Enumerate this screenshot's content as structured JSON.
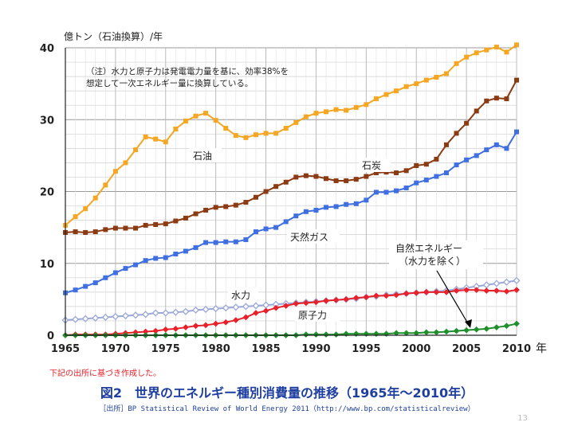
{
  "chart_data": {
    "type": "line",
    "ylabel": "億トン（石油換算）/年",
    "xunit": "年",
    "note_lines": [
      "（注）水力と原子力は発電電力量を基に、効率38%を",
      "想定して一次エネルギー量に換算している。"
    ],
    "ylim": [
      0,
      40
    ],
    "yticks": [
      0,
      10,
      20,
      30,
      40
    ],
    "xlim": [
      1965,
      2010
    ],
    "xticks": [
      1965,
      1970,
      1975,
      1980,
      1985,
      1990,
      1995,
      2000,
      2005,
      2010
    ],
    "grid": true,
    "x": [
      1965,
      1966,
      1967,
      1968,
      1969,
      1970,
      1971,
      1972,
      1973,
      1974,
      1975,
      1976,
      1977,
      1978,
      1979,
      1980,
      1981,
      1982,
      1983,
      1984,
      1985,
      1986,
      1987,
      1988,
      1989,
      1990,
      1991,
      1992,
      1993,
      1994,
      1995,
      1996,
      1997,
      1998,
      1999,
      2000,
      2001,
      2002,
      2003,
      2004,
      2005,
      2006,
      2007,
      2008,
      2009,
      2010
    ],
    "series": [
      {
        "name": "石油",
        "color": "#f5a623",
        "marker": "square",
        "values": [
          15.3,
          16.5,
          17.6,
          19.1,
          20.9,
          22.8,
          24.0,
          25.8,
          27.6,
          27.3,
          26.9,
          28.7,
          29.8,
          30.5,
          30.9,
          29.9,
          28.8,
          27.8,
          27.5,
          27.9,
          28.1,
          28.1,
          28.8,
          29.6,
          30.4,
          30.9,
          31.1,
          31.4,
          31.3,
          31.7,
          32.1,
          32.9,
          33.5,
          34.0,
          34.6,
          35.0,
          35.5,
          35.9,
          36.4,
          37.8,
          38.7,
          39.3,
          39.7,
          40.1,
          39.4,
          40.4
        ]
      },
      {
        "name": "石炭",
        "color": "#8b3a12",
        "marker": "square",
        "values": [
          14.3,
          14.4,
          14.3,
          14.4,
          14.7,
          14.9,
          14.9,
          14.9,
          15.3,
          15.4,
          15.5,
          15.9,
          16.3,
          16.9,
          17.4,
          17.8,
          17.9,
          18.1,
          18.5,
          19.2,
          20.0,
          20.7,
          21.3,
          22.0,
          22.2,
          22.1,
          21.8,
          21.5,
          21.5,
          21.7,
          22.1,
          22.6,
          22.7,
          22.6,
          22.9,
          23.6,
          23.8,
          24.5,
          26.5,
          28.1,
          29.5,
          31.2,
          32.6,
          33.0,
          32.9,
          35.5
        ]
      },
      {
        "name": "天然ガス",
        "color": "#3f6fe0",
        "marker": "square",
        "values": [
          5.9,
          6.3,
          6.8,
          7.3,
          8.0,
          8.7,
          9.3,
          9.8,
          10.4,
          10.7,
          10.8,
          11.3,
          11.7,
          12.2,
          12.9,
          12.9,
          13.0,
          13.0,
          13.3,
          14.4,
          14.8,
          15.0,
          15.8,
          16.6,
          17.2,
          17.4,
          17.8,
          17.9,
          18.2,
          18.3,
          18.8,
          19.9,
          19.9,
          20.1,
          20.5,
          21.2,
          21.6,
          22.1,
          22.6,
          23.7,
          24.4,
          25.0,
          25.8,
          26.5,
          26.0,
          28.3
        ]
      },
      {
        "name": "水力",
        "color": "#9aa7d8",
        "marker": "open-diamond",
        "values": [
          2.1,
          2.2,
          2.3,
          2.4,
          2.5,
          2.6,
          2.7,
          2.8,
          2.9,
          3.1,
          3.1,
          3.2,
          3.3,
          3.5,
          3.6,
          3.7,
          3.8,
          3.9,
          4.0,
          4.1,
          4.2,
          4.3,
          4.4,
          4.5,
          4.6,
          4.7,
          4.8,
          4.9,
          5.0,
          5.1,
          5.3,
          5.4,
          5.6,
          5.7,
          5.8,
          5.9,
          6.0,
          6.1,
          6.2,
          6.4,
          6.6,
          6.8,
          7.0,
          7.2,
          7.4,
          7.6
        ]
      },
      {
        "name": "原子力",
        "color": "#e8202a",
        "marker": "diamond",
        "values": [
          0.0,
          0.1,
          0.1,
          0.1,
          0.1,
          0.2,
          0.3,
          0.4,
          0.5,
          0.6,
          0.8,
          0.9,
          1.1,
          1.3,
          1.4,
          1.6,
          1.8,
          2.1,
          2.5,
          3.1,
          3.4,
          3.8,
          4.1,
          4.4,
          4.5,
          4.6,
          4.8,
          4.9,
          5.0,
          5.2,
          5.3,
          5.5,
          5.5,
          5.6,
          5.8,
          5.9,
          6.0,
          6.0,
          6.0,
          6.2,
          6.3,
          6.3,
          6.2,
          6.2,
          6.1,
          6.3
        ]
      },
      {
        "name": "",
        "color": "#1e8f2a",
        "marker": "diamond",
        "values": [
          0.0,
          0.0,
          0.0,
          0.0,
          0.0,
          0.0,
          0.0,
          0.0,
          0.0,
          0.0,
          0.0,
          0.0,
          0.0,
          0.0,
          0.0,
          0.0,
          0.0,
          0.0,
          0.0,
          0.0,
          0.0,
          0.0,
          0.0,
          0.0,
          0.1,
          0.1,
          0.1,
          0.1,
          0.2,
          0.2,
          0.2,
          0.2,
          0.2,
          0.3,
          0.3,
          0.3,
          0.4,
          0.4,
          0.5,
          0.6,
          0.7,
          0.8,
          0.9,
          1.1,
          1.3,
          1.6
        ]
      }
    ],
    "annotations": {
      "oil": "石油",
      "coal": "石炭",
      "gas": "天然ガス",
      "hydro": "水力",
      "nuclear": "原子力",
      "renew_line1": "自然エネルギー",
      "renew_line2": "（水力を除く）"
    }
  },
  "caption": "下記の出所に基づき作成した。",
  "figure_title": "図2　世界のエネルギー種別消費量の推移（1965年～2010年）",
  "source": "［出所］BP Statistical Review of World Energy 2011（http://www.bp.com/statisticalreview）",
  "page_number": "13"
}
